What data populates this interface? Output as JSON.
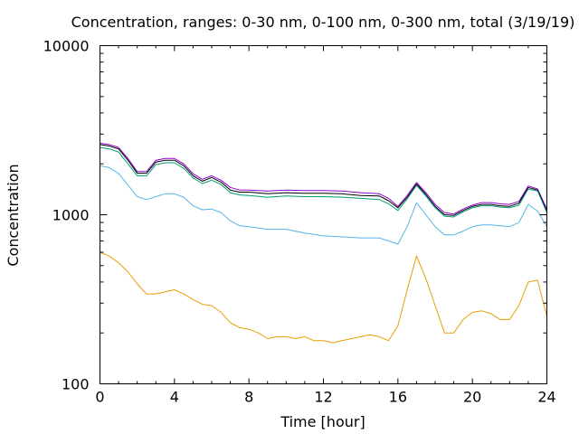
{
  "chart_data": {
    "type": "line",
    "title": "Concentration, ranges: 0-30 nm, 0-100 nm, 0-300 nm, total (3/19/19)",
    "xlabel": "Time [hour]",
    "ylabel": "Concentration",
    "xlim": [
      0,
      24
    ],
    "ylim": [
      100,
      10000
    ],
    "yscale": "log",
    "grid": false,
    "xticks": [
      0,
      4,
      8,
      12,
      16,
      20,
      24
    ],
    "xtick_labels": [
      "0",
      "4",
      "8",
      "12",
      "16",
      "20",
      "24"
    ],
    "yticks": [
      100,
      1000,
      10000
    ],
    "ytick_labels": [
      "100",
      "1000",
      "10000"
    ],
    "series": [
      {
        "color": "#9400d3",
        "x": [
          0,
          0.5,
          1,
          1.5,
          2,
          2.5,
          3,
          3.5,
          4,
          4.5,
          5,
          5.5,
          6,
          6.5,
          7,
          7.5,
          8,
          9,
          10,
          11,
          12,
          13,
          14,
          15,
          15.5,
          16,
          16.5,
          17,
          17.5,
          18,
          18.5,
          19,
          19.5,
          20,
          20.5,
          21,
          21.5,
          22,
          22.5,
          23,
          23.5,
          24
        ],
        "y": [
          2650,
          2600,
          2500,
          2150,
          1800,
          1800,
          2100,
          2150,
          2150,
          2000,
          1750,
          1620,
          1700,
          1600,
          1450,
          1400,
          1400,
          1380,
          1400,
          1390,
          1390,
          1380,
          1350,
          1330,
          1250,
          1120,
          1300,
          1550,
          1350,
          1150,
          1030,
          1010,
          1080,
          1140,
          1180,
          1180,
          1160,
          1150,
          1200,
          1480,
          1420,
          1080
        ]
      },
      {
        "color": "#000000",
        "x": [
          0,
          0.5,
          1,
          1.5,
          2,
          2.5,
          3,
          3.5,
          4,
          4.5,
          5,
          5.5,
          6,
          6.5,
          7,
          7.5,
          8,
          9,
          10,
          11,
          12,
          13,
          14,
          15,
          15.5,
          16,
          16.5,
          17,
          17.5,
          18,
          18.5,
          19,
          19.5,
          20,
          20.5,
          21,
          21.5,
          22,
          22.5,
          23,
          23.5,
          24
        ],
        "y": [
          2600,
          2550,
          2450,
          2100,
          1760,
          1760,
          2050,
          2100,
          2100,
          1950,
          1700,
          1580,
          1660,
          1560,
          1400,
          1360,
          1360,
          1330,
          1350,
          1340,
          1340,
          1330,
          1300,
          1290,
          1210,
          1100,
          1270,
          1520,
          1320,
          1120,
          1000,
          990,
          1060,
          1120,
          1150,
          1150,
          1130,
          1120,
          1170,
          1450,
          1400,
          1050
        ]
      },
      {
        "color": "#009e73",
        "x": [
          0,
          0.5,
          1,
          1.5,
          2,
          2.5,
          3,
          3.5,
          4,
          4.5,
          5,
          5.5,
          6,
          6.5,
          7,
          7.5,
          8,
          9,
          10,
          11,
          12,
          13,
          14,
          15,
          15.5,
          16,
          16.5,
          17,
          17.5,
          18,
          18.5,
          19,
          19.5,
          20,
          20.5,
          21,
          21.5,
          22,
          22.5,
          23,
          23.5,
          24
        ],
        "y": [
          2500,
          2450,
          2350,
          2000,
          1700,
          1700,
          1980,
          2030,
          2030,
          1880,
          1650,
          1530,
          1600,
          1510,
          1350,
          1310,
          1300,
          1270,
          1290,
          1280,
          1280,
          1270,
          1250,
          1230,
          1160,
          1060,
          1240,
          1490,
          1290,
          1100,
          980,
          970,
          1040,
          1100,
          1130,
          1130,
          1110,
          1100,
          1140,
          1420,
          1380,
          1030
        ]
      },
      {
        "color": "#56b4e9",
        "x": [
          0,
          0.5,
          1,
          1.5,
          2,
          2.5,
          3,
          3.5,
          4,
          4.5,
          5,
          5.5,
          6,
          6.5,
          7,
          7.5,
          8,
          9,
          10,
          11,
          12,
          13,
          14,
          15,
          15.5,
          16,
          16.5,
          17,
          17.5,
          18,
          18.5,
          19,
          19.5,
          20,
          20.5,
          21,
          21.5,
          22,
          22.5,
          23,
          23.5,
          24
        ],
        "y": [
          1950,
          1900,
          1750,
          1500,
          1280,
          1230,
          1280,
          1330,
          1330,
          1270,
          1130,
          1070,
          1080,
          1030,
          920,
          860,
          850,
          820,
          820,
          780,
          750,
          740,
          730,
          730,
          700,
          670,
          850,
          1180,
          1000,
          850,
          760,
          760,
          800,
          850,
          870,
          870,
          860,
          850,
          900,
          1150,
          1050,
          850
        ]
      },
      {
        "color": "#e69f00",
        "x": [
          0,
          0.5,
          1,
          1.5,
          2,
          2.5,
          3,
          3.5,
          4,
          4.5,
          5,
          5.5,
          6,
          6.5,
          7,
          7.5,
          8,
          8.5,
          9,
          9.5,
          10,
          10.5,
          11,
          11.5,
          12,
          12.5,
          13,
          13.5,
          14,
          14.5,
          15,
          15.5,
          16,
          16.5,
          17,
          17.5,
          18,
          18.5,
          19,
          19.5,
          20,
          20.5,
          21,
          21.5,
          22,
          22.5,
          23,
          23.5,
          24
        ],
        "y": [
          600,
          570,
          520,
          460,
          390,
          340,
          340,
          350,
          360,
          340,
          315,
          295,
          290,
          265,
          230,
          215,
          210,
          200,
          185,
          190,
          190,
          185,
          190,
          180,
          180,
          175,
          180,
          185,
          190,
          195,
          190,
          180,
          220,
          360,
          570,
          420,
          290,
          200,
          200,
          240,
          265,
          270,
          260,
          240,
          240,
          290,
          400,
          410,
          250
        ]
      }
    ]
  }
}
